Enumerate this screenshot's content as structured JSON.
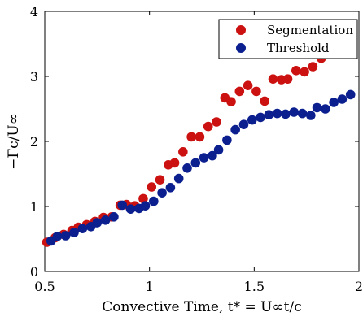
{
  "chart_data": {
    "type": "scatter",
    "title": "",
    "xlabel": "Convective Time, t* = U∞t/c",
    "ylabel": "−Γc/U∞",
    "xlim": [
      0.5,
      2
    ],
    "ylim": [
      0,
      4
    ],
    "xticks": [
      "0.5",
      "1",
      "1.5",
      "2"
    ],
    "yticks": [
      "0",
      "1",
      "2",
      "3",
      "4"
    ],
    "grid": false,
    "legend_position": "top-right",
    "series": [
      {
        "name": "Segmentation",
        "color": "#cc1111",
        "x": [
          0.51,
          0.55,
          0.59,
          0.63,
          0.66,
          0.7,
          0.74,
          0.78,
          0.82,
          0.86,
          0.89,
          0.93,
          0.97,
          1.01,
          1.05,
          1.09,
          1.12,
          1.16,
          1.2,
          1.24,
          1.28,
          1.32,
          1.36,
          1.39,
          1.43,
          1.47,
          1.51,
          1.55,
          1.59,
          1.63,
          1.66,
          1.7,
          1.74,
          1.78,
          1.82,
          1.86,
          1.9,
          1.93,
          1.97
        ],
        "y": [
          0.45,
          0.52,
          0.57,
          0.63,
          0.68,
          0.72,
          0.77,
          0.83,
          0.84,
          1.02,
          1.03,
          1.01,
          1.12,
          1.3,
          1.41,
          1.64,
          1.67,
          1.84,
          2.07,
          2.07,
          2.23,
          2.3,
          2.67,
          2.61,
          2.77,
          2.86,
          2.77,
          2.62,
          2.96,
          2.95,
          2.96,
          3.09,
          3.07,
          3.15,
          3.28,
          3.47,
          3.49,
          3.52,
          3.35
        ]
      },
      {
        "name": "Threshold",
        "color": "#0c1f8f",
        "x": [
          0.53,
          0.56,
          0.6,
          0.64,
          0.68,
          0.72,
          0.75,
          0.79,
          0.83,
          0.87,
          0.91,
          0.95,
          0.98,
          1.02,
          1.06,
          1.1,
          1.14,
          1.18,
          1.22,
          1.26,
          1.3,
          1.33,
          1.37,
          1.41,
          1.45,
          1.49,
          1.53,
          1.57,
          1.61,
          1.65,
          1.69,
          1.73,
          1.77,
          1.8,
          1.84,
          1.88,
          1.92,
          1.96
        ],
        "y": [
          0.47,
          0.54,
          0.55,
          0.6,
          0.66,
          0.69,
          0.75,
          0.79,
          0.84,
          1.02,
          0.96,
          0.97,
          1.01,
          1.08,
          1.21,
          1.29,
          1.43,
          1.59,
          1.67,
          1.75,
          1.78,
          1.87,
          2.02,
          2.18,
          2.26,
          2.33,
          2.37,
          2.41,
          2.43,
          2.42,
          2.45,
          2.43,
          2.4,
          2.52,
          2.5,
          2.6,
          2.65,
          2.72
        ]
      }
    ]
  }
}
